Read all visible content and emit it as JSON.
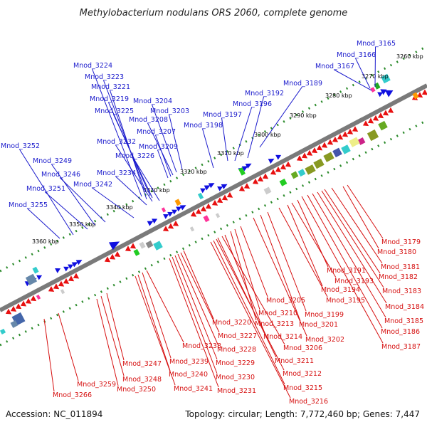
{
  "title": "Methylobacterium nodulans ORS 2060, complete genome",
  "footer": {
    "accession": "Accession: NC_011894",
    "info": "Topology: circular; Length: 7,772,460 bp; Genes: 7,447"
  },
  "colors": {
    "forward_arrow": "#1010e0",
    "reverse_arrow": "#e81010",
    "blue_label": "#1a1acc",
    "red_label": "#d61010",
    "backbone": "#7a7a7a",
    "tick": "#2a8a2a"
  },
  "kbp_labels": [
    "3260 kbp",
    "3270 kbp",
    "3280 kbp",
    "3290 kbp",
    "3300 kbp",
    "3310 kbp",
    "3320 kbp",
    "3330 kbp",
    "3340 kbp",
    "3350 kbp",
    "3360 kbp"
  ],
  "upper_labels": [
    "Mnod_3165",
    "Mnod_3166",
    "Mnod_3167",
    "Mnod_3189",
    "Mnod_3192",
    "Mnod_3196",
    "Mnod_3197",
    "Mnod_3198",
    "Mnod_3203",
    "Mnod_3204",
    "Mnod_3208",
    "Mnod_3207",
    "Mnod_3209",
    "Mnod_3224",
    "Mnod_3223",
    "Mnod_3221",
    "Mnod_3219",
    "Mnod_3225",
    "Mnod_3232",
    "Mnod_3226",
    "Mnod_3234",
    "Mnod_3242",
    "Mnod_3246",
    "Mnod_3249",
    "Mnod_3251",
    "Mnod_3252",
    "Mnod_3255"
  ],
  "lower_labels": [
    "Mnod_3179",
    "Mnod_3180",
    "Mnod_3181",
    "Mnod_3182",
    "Mnod_3183",
    "Mnod_3184",
    "Mnod_3185",
    "Mnod_3186",
    "Mnod_3187",
    "Mnod_3191",
    "Mnod_3193",
    "Mnod_3194",
    "Mnod_3195",
    "Mnod_3199",
    "Mnod_3201",
    "Mnod_3202",
    "Mnod_3205",
    "Mnod_3210",
    "Mnod_3213",
    "Mnod_3214",
    "Mnod_3206",
    "Mnod_3211",
    "Mnod_3212",
    "Mnod_3215",
    "Mnod_3216",
    "Mnod_3220",
    "Mnod_3227",
    "Mnod_3228",
    "Mnod_3229",
    "Mnod_3230",
    "Mnod_3231",
    "Mnod_3238",
    "Mnod_3239",
    "Mnod_3240",
    "Mnod_3241",
    "Mnod_3247",
    "Mnod_3248",
    "Mnod_3250",
    "Mnod_3259",
    "Mnod_3266"
  ]
}
